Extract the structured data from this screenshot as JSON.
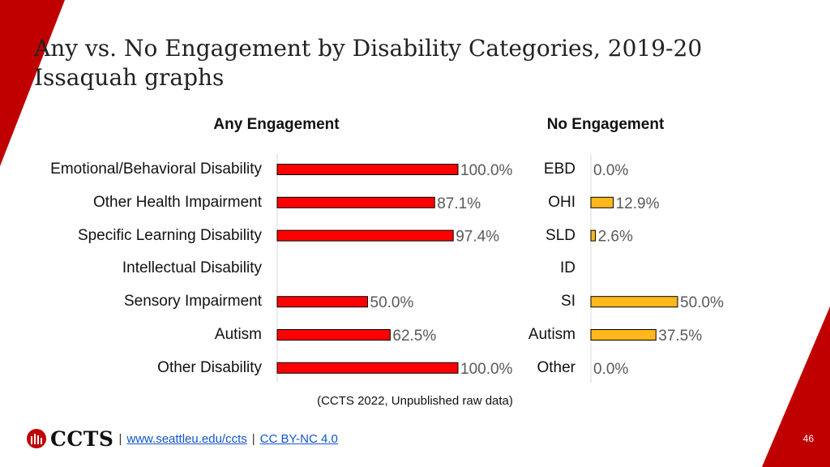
{
  "slide": {
    "title": "Any vs. No Engagement by Disability Categories, 2019-20 Issaquah graphs",
    "source": "(CCTS 2022, Unpublished raw data)",
    "page_number": "46"
  },
  "footer": {
    "logo_text": "CCTS",
    "sep1": "|",
    "link1": "www.seattleu.edu/ccts",
    "sep2": "|",
    "link2": "CC BY-NC 4.0"
  },
  "colors": {
    "any_bar": "#ff0000",
    "no_bar": "#ffb81c",
    "accent": "#c00000",
    "value_text": "#595959"
  },
  "chart_data": [
    {
      "type": "bar",
      "orientation": "horizontal",
      "title": "Any Engagement",
      "categories": [
        "Emotional/Behavioral Disability",
        "Other Health Impairment",
        "Specific Learning Disability",
        "Intellectual Disability",
        "Sensory Impairment",
        "Autism",
        "Other Disability"
      ],
      "values": [
        100.0,
        87.1,
        97.4,
        null,
        50.0,
        62.5,
        100.0
      ],
      "labels": [
        "100.0%",
        "87.1%",
        "97.4%",
        "",
        "50.0%",
        "62.5%",
        "100.0%"
      ],
      "xlim": [
        0,
        100
      ],
      "unit": "%"
    },
    {
      "type": "bar",
      "orientation": "horizontal",
      "title": "No Engagement",
      "categories": [
        "EBD",
        "OHI",
        "SLD",
        "ID",
        "SI",
        "Autism",
        "Other"
      ],
      "values": [
        0.0,
        12.9,
        2.6,
        null,
        50.0,
        37.5,
        0.0
      ],
      "labels": [
        "0.0%",
        "12.9%",
        "2.6%",
        "",
        "50.0%",
        "37.5%",
        "0.0%"
      ],
      "xlim": [
        0,
        50
      ],
      "unit": "%"
    }
  ]
}
